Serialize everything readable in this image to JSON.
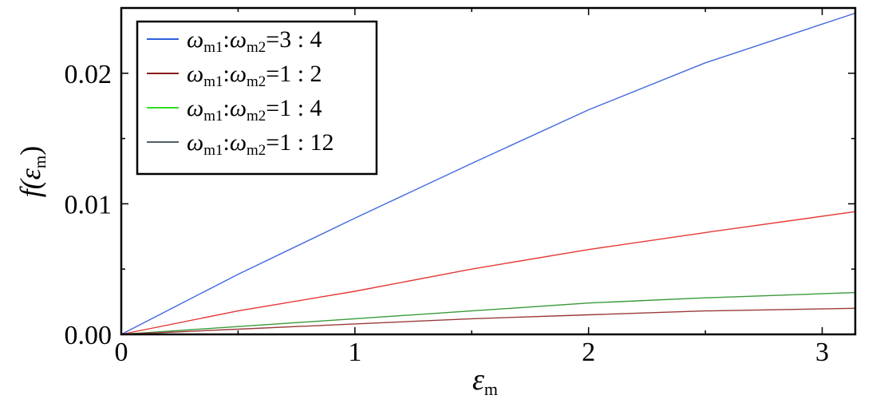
{
  "chart_data": {
    "type": "line",
    "xlabel": {
      "symbol": "ε",
      "subscript": "m"
    },
    "ylabel": {
      "prefix": "f(",
      "symbol": "ε",
      "subscript": "m",
      "suffix": ")"
    },
    "xlim": [
      0,
      3.14159
    ],
    "ylim": [
      0,
      0.025
    ],
    "x_ticks": [
      0,
      1,
      2,
      3
    ],
    "x_tick_labels": [
      "0",
      "1",
      "2",
      "3"
    ],
    "y_ticks": [
      0,
      0.01,
      0.02
    ],
    "y_tick_labels": [
      "0.00",
      "0.01",
      "0.02"
    ],
    "grid": false,
    "legend_position": "top-left",
    "series": [
      {
        "name": "ωm1:ωm2=3 : 4",
        "legend": {
          "w1": "ω",
          "s1": "m1",
          "colon": ":",
          "w2": "ω",
          "s2": "m2",
          "ratio": "=3 : 4"
        },
        "color": "#4169e1",
        "x": [
          0,
          0.5,
          1.0,
          1.5,
          2.0,
          2.5,
          3.14159
        ],
        "y": [
          0,
          0.0046,
          0.0089,
          0.0131,
          0.0172,
          0.0208,
          0.0246
        ]
      },
      {
        "name": "ωm1:ωm2=1 : 2",
        "legend": {
          "w1": "ω",
          "s1": "m1",
          "colon": ":",
          "w2": "ω",
          "s2": "m2",
          "ratio": "=1 : 2"
        },
        "color": "#e53935",
        "x": [
          0,
          0.5,
          1.0,
          1.5,
          2.0,
          2.5,
          3.14159
        ],
        "y": [
          0,
          0.0018,
          0.0033,
          0.005,
          0.0065,
          0.0078,
          0.0094
        ]
      },
      {
        "name": "ωm1:ωm2=1 : 4",
        "legend": {
          "w1": "ω",
          "s1": "m1",
          "colon": ":",
          "w2": "ω",
          "s2": "m2",
          "ratio": "=1 : 4"
        },
        "color": "#3a9a3a",
        "x": [
          0,
          0.5,
          1.0,
          1.5,
          2.0,
          2.5,
          3.14159
        ],
        "y": [
          0,
          0.0006,
          0.0012,
          0.0018,
          0.0024,
          0.0028,
          0.0032
        ]
      },
      {
        "name": "ωm1:ωm2=1 : 12",
        "legend": {
          "w1": "ω",
          "s1": "m1",
          "colon": ":",
          "w2": "ω",
          "s2": "m2",
          "ratio": "=1 : 12"
        },
        "color": "#9b3a3a",
        "x": [
          0,
          0.5,
          1.0,
          1.5,
          2.0,
          2.5,
          3.14159
        ],
        "y": [
          0,
          0.0004,
          0.0008,
          0.0012,
          0.0015,
          0.0018,
          0.002
        ]
      }
    ]
  },
  "legend_swatch_colors": [
    "#2f5fd8",
    "#8b1a1a",
    "#33dd22",
    "#4f6064"
  ]
}
